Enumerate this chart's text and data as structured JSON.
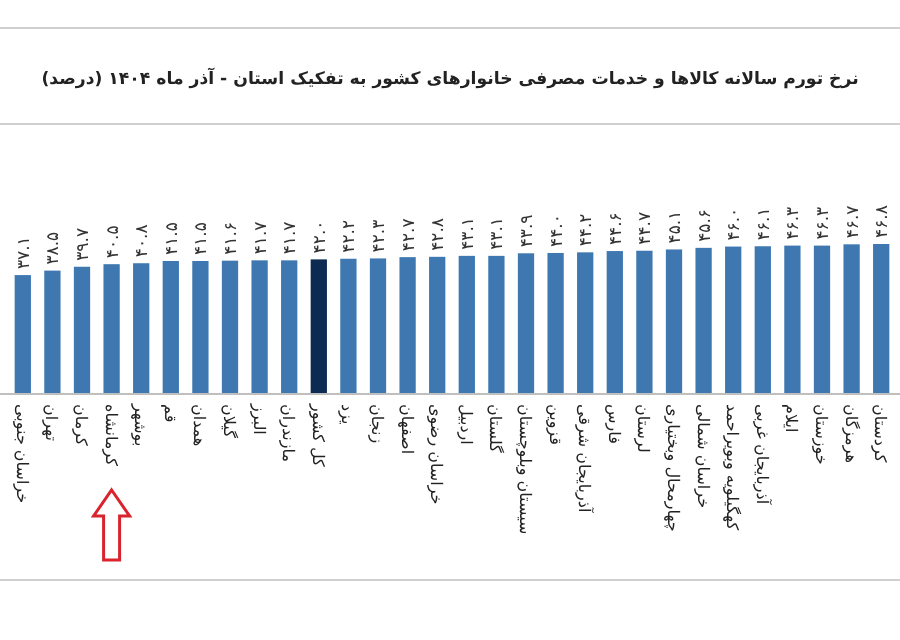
{
  "chart_data": {
    "type": "bar",
    "title": "نرخ تورم سالانه کالاها و خدمات مصرفی خانوارهای کشور به تفکیک استان - آذر ماه ۱۴۰۴ (درصد)",
    "categories": [
      "خراسان جنوبی",
      "تهران",
      "کرمان",
      "کرمانشاه",
      "بوشهر",
      "قم",
      "همدان",
      "گیلان",
      "البرز",
      "مازندران",
      "کل کشور",
      "یزد",
      "زنجان",
      "اصفهان",
      "خراسان رضوی",
      "اردبیل",
      "گلستان",
      "سیستان وبلوچستان",
      "قزوین",
      "آذربایجان شرقی",
      "فارس",
      "لرستان",
      "چهارمحال وبختیاری",
      "خراسان شمالی",
      "کهگیلویه وبویراحمد",
      "آذربایجان غربی",
      "ایلام",
      "خوزستان",
      "هرمزگان",
      "کردستان"
    ],
    "values": [
      37.1,
      38.5,
      39.7,
      40.5,
      40.8,
      41.5,
      41.5,
      41.6,
      41.7,
      41.7,
      42.0,
      42.2,
      42.3,
      42.7,
      42.8,
      43.1,
      43.1,
      43.9,
      44.0,
      44.2,
      44.6,
      44.7,
      45.1,
      45.6,
      46.0,
      46.1,
      46.3,
      46.3,
      46.7,
      46.8
    ],
    "value_labels": [
      "۳۷.۱",
      "۳۸.۵",
      "۳۹.۷",
      "۴۰.۵",
      "۴۰.۸",
      "۴۱.۵",
      "۴۱.۵",
      "۴۱.۶",
      "۴۱.۷",
      "۴۱.۷",
      "۴۲.۰",
      "۴۲.۲",
      "۴۲.۳",
      "۴۲.۷",
      "۴۲.۸",
      "۴۳.۱",
      "۴۳.۱",
      "۴۳.۹",
      "۴۴.۰",
      "۴۴.۲",
      "۴۴.۶",
      "۴۴.۷",
      "۴۵.۱",
      "۴۵.۶",
      "۴۶.۰",
      "۴۶.۱",
      "۴۶.۳",
      "۴۶.۳",
      "۴۶.۷",
      "۴۶.۸"
    ],
    "colors": [
      "#3f78b0",
      "#3f78b0",
      "#3f78b0",
      "#3f78b0",
      "#3f78b0",
      "#3f78b0",
      "#3f78b0",
      "#3f78b0",
      "#3f78b0",
      "#3f78b0",
      "#0d2a52",
      "#3f78b0",
      "#3f78b0",
      "#3f78b0",
      "#3f78b0",
      "#3f78b0",
      "#3f78b0",
      "#3f78b0",
      "#3f78b0",
      "#3f78b0",
      "#3f78b0",
      "#3f78b0",
      "#3f78b0",
      "#3f78b0",
      "#3f78b0",
      "#3f78b0",
      "#3f78b0",
      "#3f78b0",
      "#3f78b0",
      "#3f78b0"
    ]
  }
}
